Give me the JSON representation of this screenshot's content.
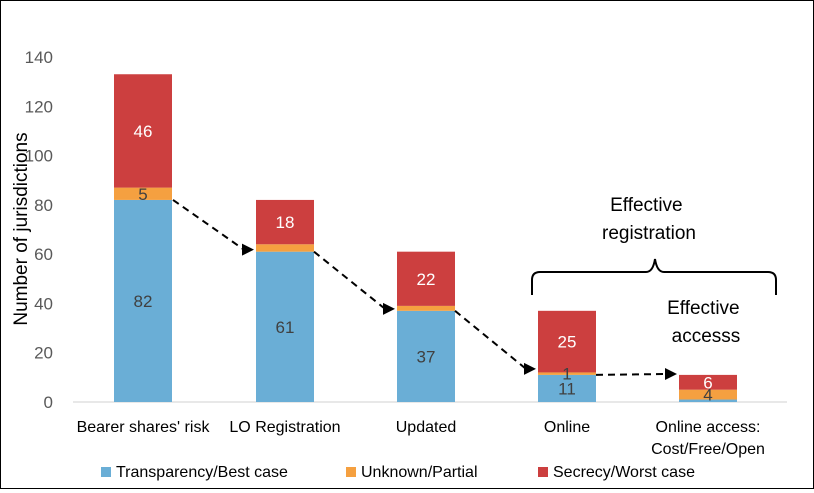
{
  "chart_data": {
    "type": "bar",
    "stacked": true,
    "categories": [
      "Bearer shares' risk",
      "LO Registration",
      "Updated",
      "Online",
      "Online access: Cost/Free/Open"
    ],
    "series": [
      {
        "name": "Transparency/Best case",
        "values": [
          82,
          61,
          37,
          11,
          1
        ],
        "color": "#6aaed6"
      },
      {
        "name": "Unknown/Partial",
        "values": [
          5,
          3,
          2,
          1,
          4
        ],
        "color": "#f5a040"
      },
      {
        "name": "Secrecy/Worst case",
        "values": [
          46,
          18,
          22,
          25,
          6
        ],
        "color": "#cc3f3f"
      }
    ],
    "data_labels": [
      [
        {
          "series": 0,
          "text": "82"
        },
        {
          "series": 1,
          "text": "5"
        },
        {
          "series": 2,
          "text": "46"
        }
      ],
      [
        {
          "series": 0,
          "text": "61"
        },
        {
          "series": 2,
          "text": "18"
        }
      ],
      [
        {
          "series": 0,
          "text": "37"
        },
        {
          "series": 2,
          "text": "22"
        }
      ],
      [
        {
          "series": 0,
          "text": "11"
        },
        {
          "series": 1,
          "text": "1"
        },
        {
          "series": 2,
          "text": "25"
        }
      ],
      [
        {
          "series": 1,
          "text": "4"
        },
        {
          "series": 2,
          "text": "6"
        }
      ]
    ],
    "xlabel": "",
    "ylabel": "Number of jurisdictions",
    "ylim": [
      0,
      140
    ],
    "yticks": [
      0,
      20,
      40,
      60,
      80,
      100,
      120,
      140
    ],
    "grid": false,
    "legend_position": "bottom",
    "annotations": {
      "effective_registration": "Effective registration",
      "effective_access": "Effective accesss"
    }
  }
}
